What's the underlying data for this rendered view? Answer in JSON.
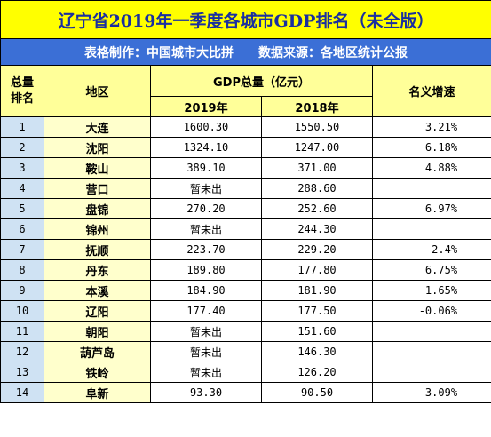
{
  "title": "辽宁省2019年一季度各城市GDP排名（未全版）",
  "subtitle": "表格制作：中国城市大比拼　　数据来源：各地区统计公报",
  "headers": {
    "rank": "总量排名",
    "region": "地区",
    "gdp": "GDP总量（亿元）",
    "y2019": "2019年",
    "y2018": "2018年",
    "growth": "名义增速"
  },
  "rows": [
    {
      "rank": "1",
      "city": "大连",
      "v2019": "1600.30",
      "v2018": "1550.50",
      "growth": "3.21%"
    },
    {
      "rank": "2",
      "city": "沈阳",
      "v2019": "1324.10",
      "v2018": "1247.00",
      "growth": "6.18%"
    },
    {
      "rank": "3",
      "city": "鞍山",
      "v2019": "389.10",
      "v2018": "371.00",
      "growth": "4.88%"
    },
    {
      "rank": "4",
      "city": "营口",
      "v2019": "暂未出",
      "v2018": "288.60",
      "growth": ""
    },
    {
      "rank": "5",
      "city": "盘锦",
      "v2019": "270.20",
      "v2018": "252.60",
      "growth": "6.97%"
    },
    {
      "rank": "6",
      "city": "锦州",
      "v2019": "暂未出",
      "v2018": "244.30",
      "growth": ""
    },
    {
      "rank": "7",
      "city": "抚顺",
      "v2019": "223.70",
      "v2018": "229.20",
      "growth": "-2.4%"
    },
    {
      "rank": "8",
      "city": "丹东",
      "v2019": "189.80",
      "v2018": "177.80",
      "growth": "6.75%"
    },
    {
      "rank": "9",
      "city": "本溪",
      "v2019": "184.90",
      "v2018": "181.90",
      "growth": "1.65%"
    },
    {
      "rank": "10",
      "city": "辽阳",
      "v2019": "177.40",
      "v2018": "177.50",
      "growth": "-0.06%"
    },
    {
      "rank": "11",
      "city": "朝阳",
      "v2019": "暂未出",
      "v2018": "151.60",
      "growth": ""
    },
    {
      "rank": "12",
      "city": "葫芦岛",
      "v2019": "暂未出",
      "v2018": "146.30",
      "growth": ""
    },
    {
      "rank": "13",
      "city": "铁岭",
      "v2019": "暂未出",
      "v2018": "126.20",
      "growth": ""
    },
    {
      "rank": "14",
      "city": "阜新",
      "v2019": "93.30",
      "v2018": "90.50",
      "growth": "3.09%"
    }
  ],
  "colors": {
    "title_bg": "#ffff00",
    "title_text": "#1a2fa0",
    "subtitle_bg": "#3b6fd6",
    "header_bg": "#ffff99",
    "rank_bg": "#cfe2f3",
    "city_bg": "#ffffcc"
  }
}
